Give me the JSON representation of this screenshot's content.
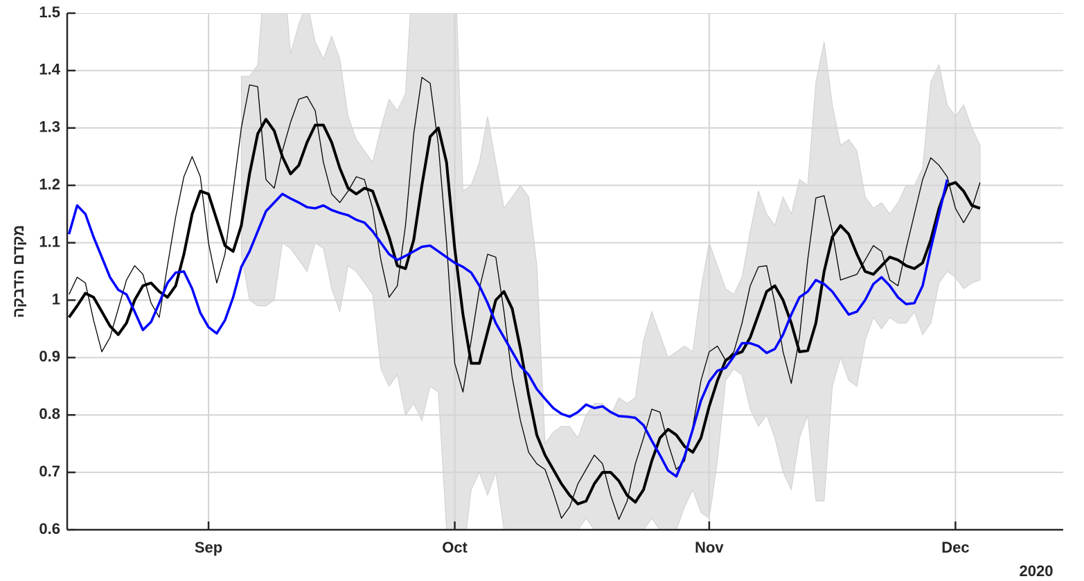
{
  "chart_data": {
    "type": "line",
    "ylabel": "מקדם הדבקה",
    "year_label": "2020",
    "categories": [
      null,
      null,
      null,
      null,
      null,
      null,
      null,
      null,
      null,
      null,
      null,
      null,
      null,
      null,
      null,
      null,
      null,
      "Sep",
      null,
      null,
      null,
      null,
      null,
      null,
      null,
      null,
      null,
      null,
      null,
      null,
      null,
      null,
      null,
      null,
      null,
      null,
      null,
      null,
      null,
      null,
      null,
      null,
      null,
      null,
      null,
      null,
      null,
      "Oct",
      null,
      null,
      null,
      null,
      null,
      null,
      null,
      null,
      null,
      null,
      null,
      null,
      null,
      null,
      null,
      null,
      null,
      null,
      null,
      null,
      null,
      null,
      null,
      null,
      null,
      null,
      null,
      null,
      null,
      null,
      "Nov",
      null,
      null,
      null,
      null,
      null,
      null,
      null,
      null,
      null,
      null,
      null,
      null,
      null,
      null,
      null,
      null,
      null,
      null,
      null,
      null,
      null,
      null,
      null,
      null,
      null,
      null,
      null,
      null,
      null,
      "Dec",
      null,
      null,
      null,
      null,
      null,
      null,
      null,
      null,
      null,
      null,
      null,
      null,
      null
    ],
    "ylim": [
      0.6,
      1.5
    ],
    "yticks": [
      0.6,
      0.7,
      0.8,
      0.9,
      1,
      1.1,
      1.2,
      1.3,
      1.4,
      1.5
    ],
    "grid": true,
    "band": {
      "color": "#e3e3e3",
      "upper": [
        null,
        null,
        null,
        null,
        null,
        null,
        null,
        null,
        null,
        null,
        null,
        null,
        null,
        null,
        null,
        null,
        null,
        null,
        null,
        null,
        null,
        1.39,
        1.39,
        1.41,
        1.6,
        1.6,
        1.6,
        1.43,
        1.48,
        1.52,
        1.45,
        1.42,
        1.46,
        1.42,
        1.32,
        1.28,
        1.26,
        1.24,
        1.3,
        1.35,
        1.33,
        1.36,
        1.6,
        1.6,
        1.6,
        1.55,
        1.6,
        1.6,
        1.19,
        1.2,
        1.24,
        1.32,
        1.24,
        1.16,
        1.18,
        1.2,
        1.18,
        1.06,
        0.75,
        0.77,
        0.78,
        0.78,
        0.76,
        0.8,
        0.82,
        0.82,
        0.8,
        0.83,
        0.82,
        0.83,
        0.93,
        0.98,
        0.94,
        0.9,
        0.91,
        0.92,
        0.91,
        1.02,
        1.1,
        1.06,
        1.02,
        1.01,
        1.04,
        1.12,
        1.19,
        1.15,
        1.13,
        1.18,
        1.15,
        1.21,
        1.2,
        1.38,
        1.45,
        1.34,
        1.27,
        1.28,
        1.26,
        1.18,
        1.16,
        1.17,
        1.15,
        1.17,
        1.2,
        1.2,
        1.23,
        1.38,
        1.41,
        1.34,
        1.32,
        1.34,
        1.3,
        1.27,
        null,
        null,
        null,
        null,
        null,
        null,
        null,
        null,
        null,
        null
      ],
      "lower": [
        null,
        null,
        null,
        null,
        null,
        null,
        null,
        null,
        null,
        null,
        null,
        null,
        null,
        null,
        null,
        null,
        null,
        null,
        null,
        null,
        null,
        1.08,
        1.0,
        0.99,
        0.99,
        1.0,
        1.1,
        1.09,
        1.07,
        1.05,
        1.1,
        1.09,
        1.02,
        0.98,
        1.06,
        1.05,
        1.03,
        1.01,
        0.88,
        0.85,
        0.87,
        0.8,
        0.82,
        0.79,
        0.85,
        0.84,
        0.6,
        0.5,
        0.55,
        0.67,
        0.7,
        0.66,
        0.7,
        0.6,
        0.6,
        0.6,
        0.6,
        0.6,
        0.58,
        0.6,
        0.58,
        0.58,
        0.6,
        0.62,
        0.6,
        0.57,
        0.57,
        0.58,
        0.59,
        0.58,
        0.6,
        0.62,
        0.6,
        0.59,
        0.6,
        0.64,
        0.67,
        0.63,
        0.62,
        0.72,
        0.86,
        0.88,
        0.87,
        0.81,
        0.78,
        0.8,
        0.76,
        0.7,
        0.67,
        0.76,
        0.8,
        0.65,
        0.65,
        0.85,
        0.9,
        0.86,
        0.85,
        0.93,
        0.97,
        0.95,
        0.97,
        0.96,
        0.96,
        0.98,
        0.94,
        0.96,
        1.03,
        1.05,
        1.04,
        1.02,
        1.03,
        1.035,
        null,
        null,
        null,
        null,
        null,
        null,
        null,
        null,
        null,
        null
      ]
    },
    "series": [
      {
        "color": "#000000",
        "linewidth": 1.3,
        "values": [
          1.01,
          1.04,
          1.03,
          0.965,
          0.91,
          0.935,
          0.985,
          1.035,
          1.06,
          1.045,
          0.995,
          0.97,
          1.06,
          1.145,
          1.215,
          1.25,
          1.215,
          1.1,
          1.03,
          1.08,
          1.19,
          1.3,
          1.375,
          1.372,
          1.21,
          1.195,
          1.26,
          1.31,
          1.35,
          1.355,
          1.33,
          1.24,
          1.185,
          1.17,
          1.19,
          1.215,
          1.21,
          1.16,
          1.07,
          1.005,
          1.025,
          1.13,
          1.29,
          1.388,
          1.378,
          1.27,
          1.1,
          0.89,
          0.84,
          0.93,
          1.02,
          1.08,
          1.075,
          0.98,
          0.865,
          0.79,
          0.735,
          0.715,
          0.705,
          0.665,
          0.62,
          0.64,
          0.68,
          0.705,
          0.73,
          0.715,
          0.66,
          0.618,
          0.65,
          0.715,
          0.76,
          0.81,
          0.805,
          0.75,
          0.705,
          0.72,
          0.78,
          0.86,
          0.91,
          0.92,
          0.895,
          0.91,
          0.96,
          1.025,
          1.058,
          1.06,
          0.995,
          0.91,
          0.855,
          0.935,
          1.07,
          1.178,
          1.182,
          1.12,
          1.035,
          1.04,
          1.045,
          1.07,
          1.095,
          1.085,
          1.035,
          1.025,
          1.09,
          1.15,
          1.21,
          1.248,
          1.235,
          1.215,
          1.16,
          1.135,
          1.16,
          1.205,
          null,
          null,
          null,
          null,
          null,
          null,
          null,
          null,
          null,
          null
        ]
      },
      {
        "color": "#000000",
        "linewidth": 4,
        "values": [
          0.97,
          0.99,
          1.012,
          1.005,
          0.98,
          0.955,
          0.94,
          0.96,
          1.0,
          1.025,
          1.03,
          1.015,
          1.005,
          1.025,
          1.08,
          1.15,
          1.19,
          1.185,
          1.14,
          1.095,
          1.085,
          1.13,
          1.22,
          1.29,
          1.315,
          1.295,
          1.25,
          1.22,
          1.235,
          1.275,
          1.305,
          1.305,
          1.275,
          1.23,
          1.195,
          1.185,
          1.195,
          1.19,
          1.15,
          1.11,
          1.06,
          1.055,
          1.105,
          1.2,
          1.285,
          1.3,
          1.24,
          1.09,
          0.975,
          0.89,
          0.89,
          0.945,
          1.0,
          1.015,
          0.985,
          0.915,
          0.835,
          0.765,
          0.73,
          0.705,
          0.68,
          0.66,
          0.645,
          0.65,
          0.68,
          0.7,
          0.7,
          0.685,
          0.66,
          0.648,
          0.67,
          0.72,
          0.76,
          0.775,
          0.765,
          0.745,
          0.735,
          0.76,
          0.815,
          0.86,
          0.895,
          0.905,
          0.91,
          0.935,
          0.975,
          1.015,
          1.025,
          1.0,
          0.96,
          0.91,
          0.912,
          0.96,
          1.05,
          1.11,
          1.13,
          1.115,
          1.08,
          1.05,
          1.045,
          1.06,
          1.075,
          1.07,
          1.06,
          1.055,
          1.065,
          1.105,
          1.16,
          1.2,
          1.205,
          1.19,
          1.165,
          1.16,
          null,
          null,
          null,
          null,
          null,
          null,
          null,
          null,
          null,
          null
        ]
      },
      {
        "color": "#0000ff",
        "linewidth": 3.5,
        "values": [
          1.115,
          1.165,
          1.15,
          1.11,
          1.075,
          1.04,
          1.018,
          1.01,
          0.98,
          0.948,
          0.962,
          0.995,
          1.03,
          1.048,
          1.05,
          1.02,
          0.978,
          0.953,
          0.942,
          0.965,
          1.005,
          1.058,
          1.085,
          1.12,
          1.155,
          1.17,
          1.185,
          1.177,
          1.17,
          1.162,
          1.16,
          1.165,
          1.157,
          1.152,
          1.148,
          1.14,
          1.135,
          1.12,
          1.1,
          1.08,
          1.07,
          1.077,
          1.085,
          1.093,
          1.095,
          1.085,
          1.075,
          1.065,
          1.058,
          1.048,
          1.025,
          0.995,
          0.96,
          0.935,
          0.91,
          0.885,
          0.87,
          0.845,
          0.828,
          0.812,
          0.802,
          0.797,
          0.805,
          0.818,
          0.812,
          0.815,
          0.805,
          0.798,
          0.797,
          0.795,
          0.782,
          0.755,
          0.73,
          0.703,
          0.693,
          0.728,
          0.775,
          0.825,
          0.858,
          0.877,
          0.882,
          0.902,
          0.925,
          0.925,
          0.92,
          0.908,
          0.915,
          0.94,
          0.975,
          1.005,
          1.015,
          1.035,
          1.028,
          1.015,
          0.995,
          0.975,
          0.98,
          1.0,
          1.028,
          1.04,
          1.025,
          1.005,
          0.993,
          0.995,
          1.025,
          1.09,
          1.15,
          1.21,
          null,
          null,
          null,
          null,
          null,
          null,
          null,
          null,
          null,
          null,
          null,
          null,
          null,
          null
        ]
      }
    ]
  }
}
